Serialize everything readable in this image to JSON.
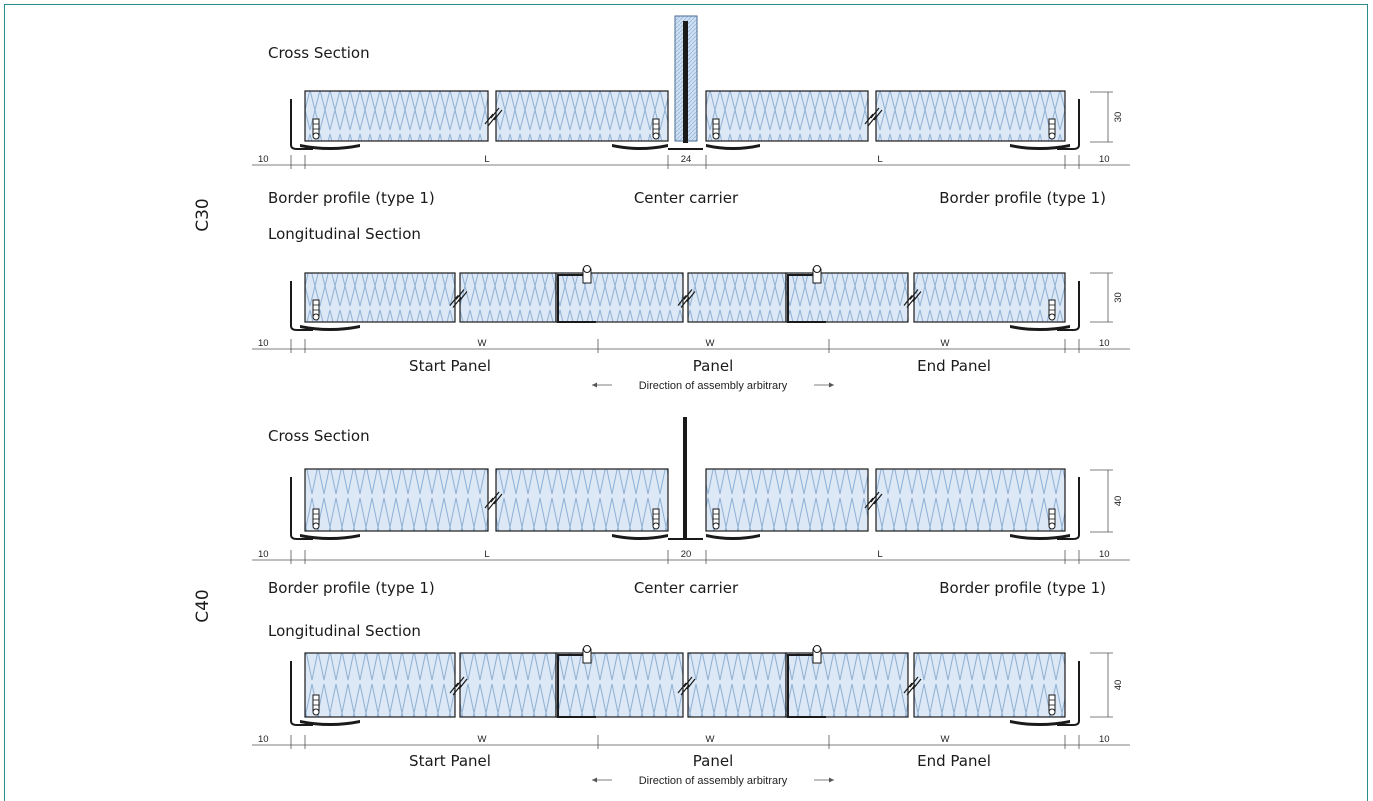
{
  "sections": [
    {
      "code": "C30",
      "thickness": "30",
      "cross": {
        "title": "Cross Section",
        "gap": "24",
        "edge_left": "10",
        "edge_right": "10",
        "span_label": "L",
        "labels": [
          "Border profile (type 1)",
          "Center carrier",
          "Border profile (type 1)"
        ]
      },
      "longitudinal": {
        "title": "Longitudinal Section",
        "edge_left": "10",
        "edge_right": "10",
        "span_label": "W",
        "labels": [
          "Start Panel",
          "Panel",
          "End Panel"
        ],
        "note": "Direction of assembly arbitrary"
      }
    },
    {
      "code": "C40",
      "thickness": "40",
      "cross": {
        "title": "Cross Section",
        "gap": "20",
        "edge_left": "10",
        "edge_right": "10",
        "span_label": "L",
        "labels": [
          "Border profile (type 1)",
          "Center carrier",
          "Border profile (type 1)"
        ]
      },
      "longitudinal": {
        "title": "Longitudinal Section",
        "edge_left": "10",
        "edge_right": "10",
        "span_label": "W",
        "labels": [
          "Start Panel",
          "Panel",
          "End Panel"
        ],
        "note": "Direction of assembly arbitrary"
      }
    }
  ],
  "colors": {
    "frame": "#2a8b8b",
    "panel_fill": "#dce8f5",
    "insulation": "#8fb0d4",
    "line": "#1a1a1a"
  }
}
